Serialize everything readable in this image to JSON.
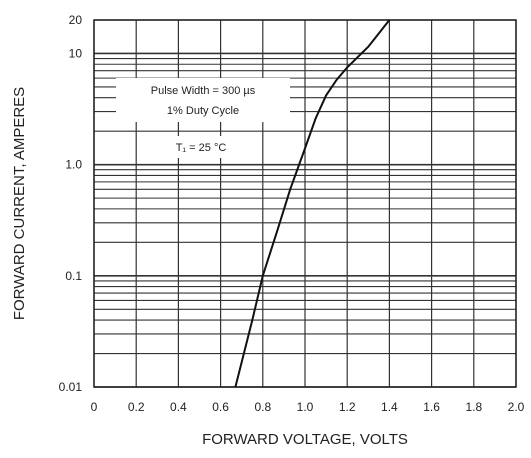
{
  "chart_data": {
    "type": "line",
    "xlabel": "FORWARD VOLTAGE, VOLTS",
    "ylabel": "FORWARD CURRENT, AMPERES",
    "x_scale": "linear",
    "y_scale": "log",
    "xlim": [
      0,
      2.0
    ],
    "ylim": [
      0.01,
      20
    ],
    "x_ticks": [
      "0",
      "0.2",
      "0.4",
      "0.6",
      "0.8",
      "1.0",
      "1.2",
      "1.4",
      "1.6",
      "1.8",
      "2.0"
    ],
    "y_ticks": [
      {
        "value": 0.01,
        "label": "0.01"
      },
      {
        "value": 0.1,
        "label": "0.1"
      },
      {
        "value": 1,
        "label": "1.0"
      },
      {
        "value": 10,
        "label": "10"
      },
      {
        "value": 20,
        "label": "20"
      }
    ],
    "grid": true,
    "series": [
      {
        "x": [
          0.67,
          0.75,
          0.8,
          0.87,
          0.93,
          1.0,
          1.05,
          1.1,
          1.15,
          1.2,
          1.3,
          1.4
        ],
        "y": [
          0.01,
          0.04,
          0.1,
          0.26,
          0.6,
          1.4,
          2.6,
          4.2,
          5.8,
          7.5,
          11.5,
          20
        ]
      }
    ],
    "annotations": {
      "line1": "Pulse Width = 300 µs",
      "line2": "1% Duty Cycle",
      "line3": "T₁ = 25 °C"
    }
  }
}
